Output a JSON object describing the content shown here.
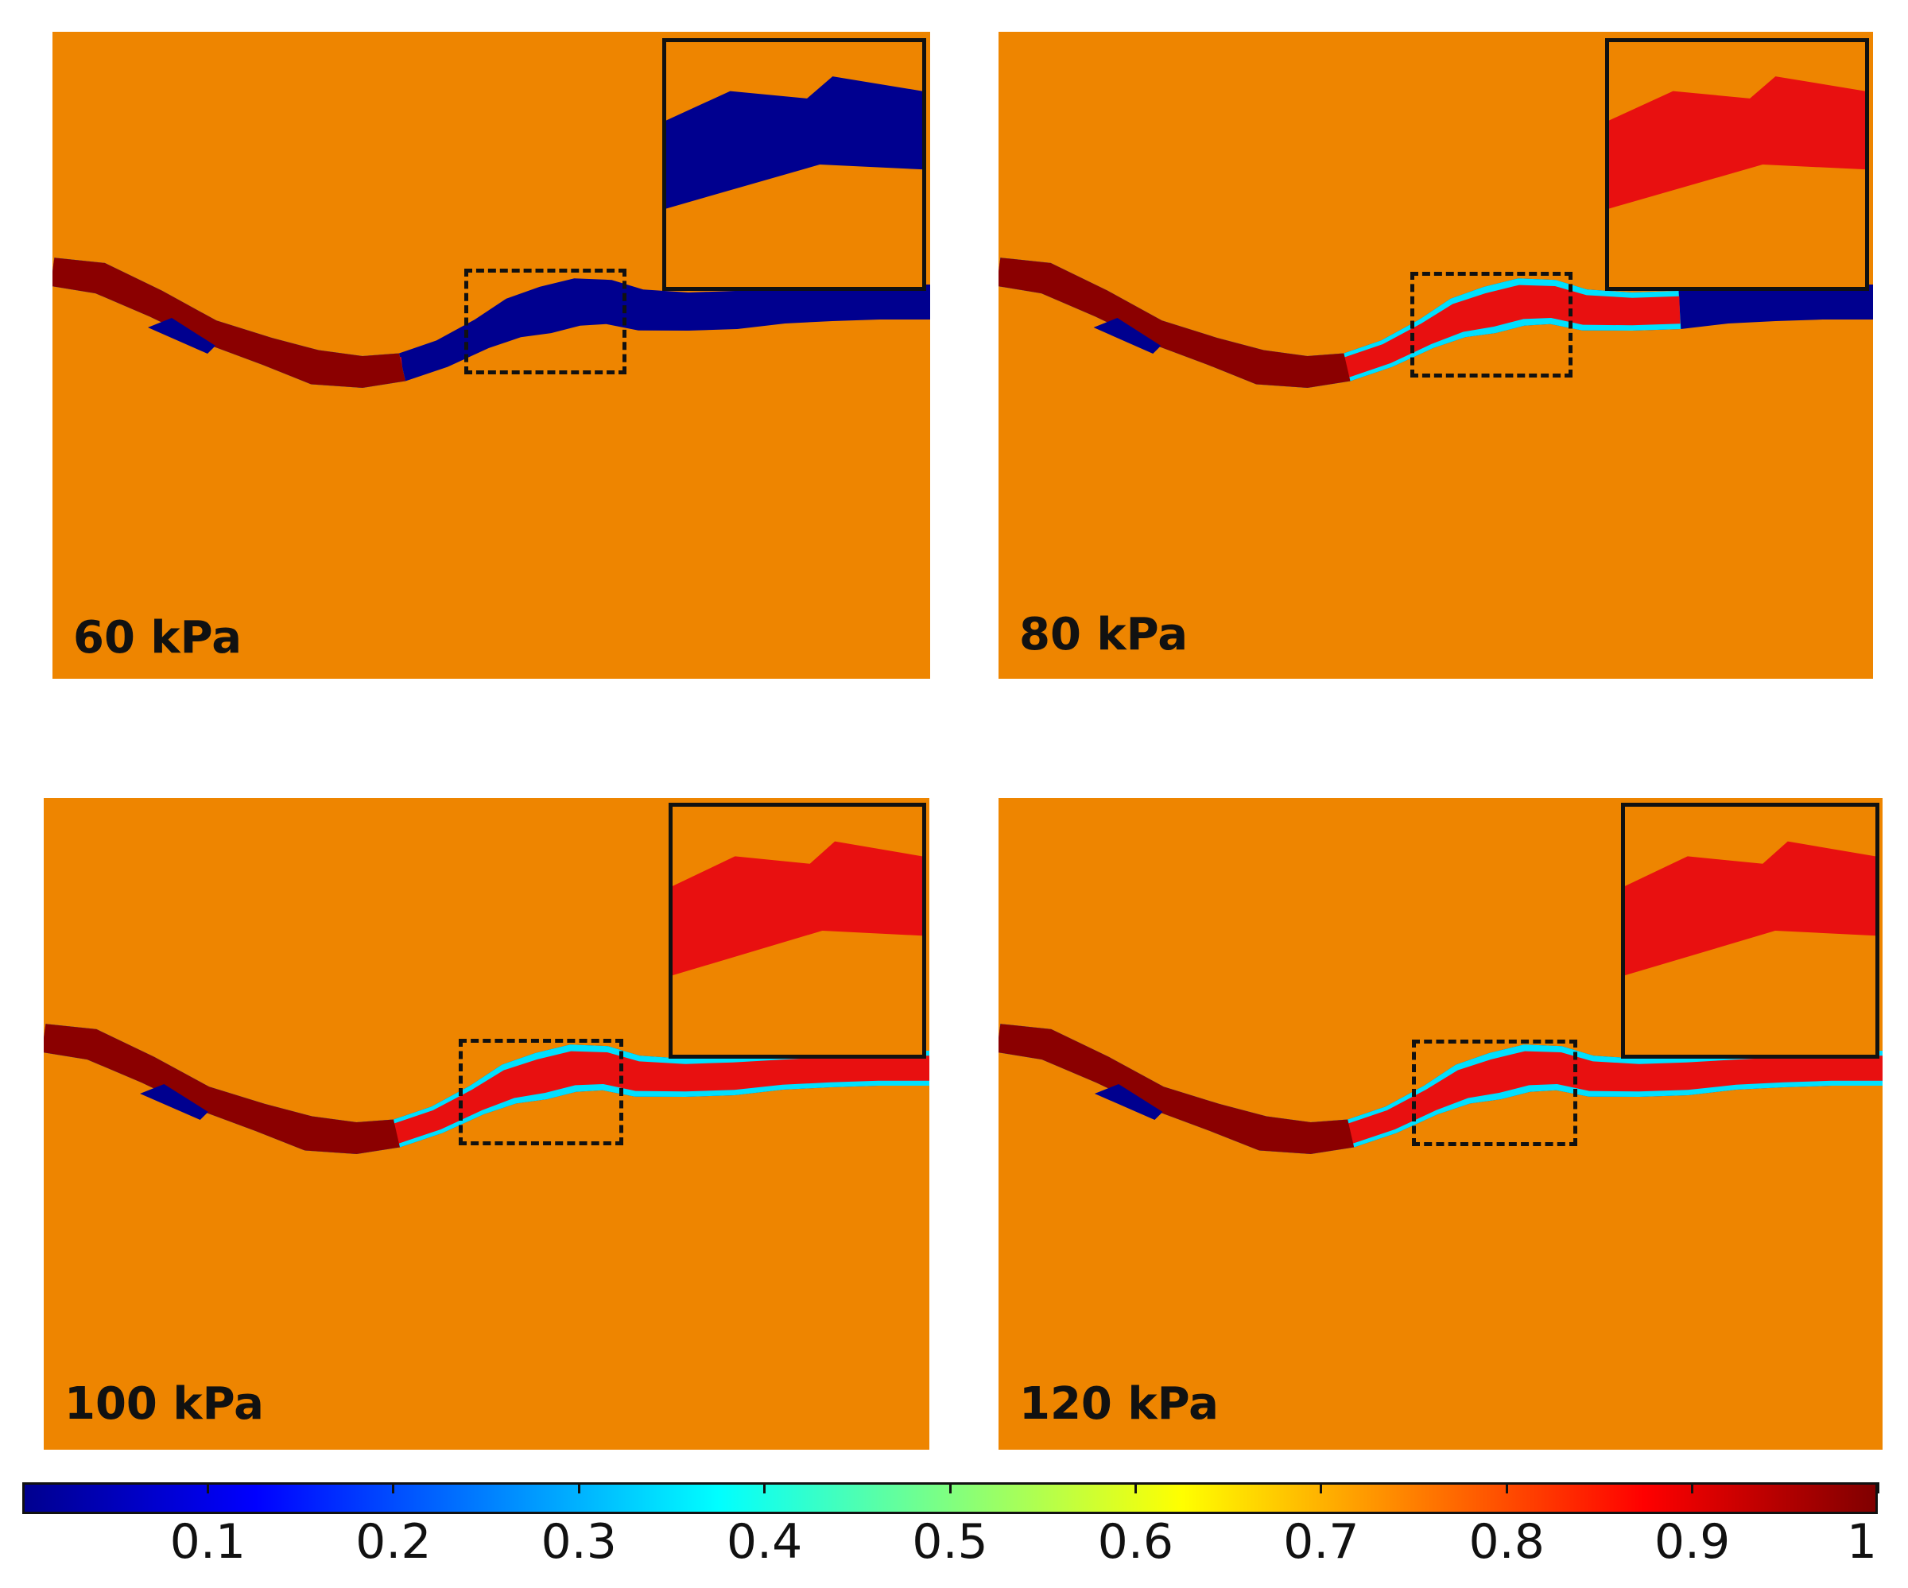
{
  "figure": {
    "panels": [
      {
        "id": "p60",
        "label": "60 kPa",
        "front_fraction": 0.36
      },
      {
        "id": "p80",
        "label": "80 kPa",
        "front_fraction": 0.78
      },
      {
        "id": "p100",
        "label": "100 kPa",
        "front_fraction": 1.0
      },
      {
        "id": "p120",
        "label": "120 kPa",
        "front_fraction": 1.0
      }
    ],
    "colorbar": {
      "min": 0,
      "max": 1,
      "ticks": [
        {
          "value": 0.1,
          "label": "0.1"
        },
        {
          "value": 0.2,
          "label": "0.2"
        },
        {
          "value": 0.3,
          "label": "0.3"
        },
        {
          "value": 0.4,
          "label": "0.4"
        },
        {
          "value": 0.5,
          "label": "0.5"
        },
        {
          "value": 0.6,
          "label": "0.6"
        },
        {
          "value": 0.7,
          "label": "0.7"
        },
        {
          "value": 0.8,
          "label": "0.8"
        },
        {
          "value": 0.9,
          "label": "0.9"
        },
        {
          "value": 1,
          "label": "1"
        }
      ],
      "stops": [
        "#00008F",
        "#0000FF",
        "#0080FF",
        "#00FFFF",
        "#80FF80",
        "#FFFF00",
        "#FF8000",
        "#FF0000",
        "#800000"
      ]
    },
    "colors": {
      "background": "#EE8500",
      "saturated": "#8B0000",
      "low": "#00008F",
      "mid_red": "#E81010"
    }
  }
}
